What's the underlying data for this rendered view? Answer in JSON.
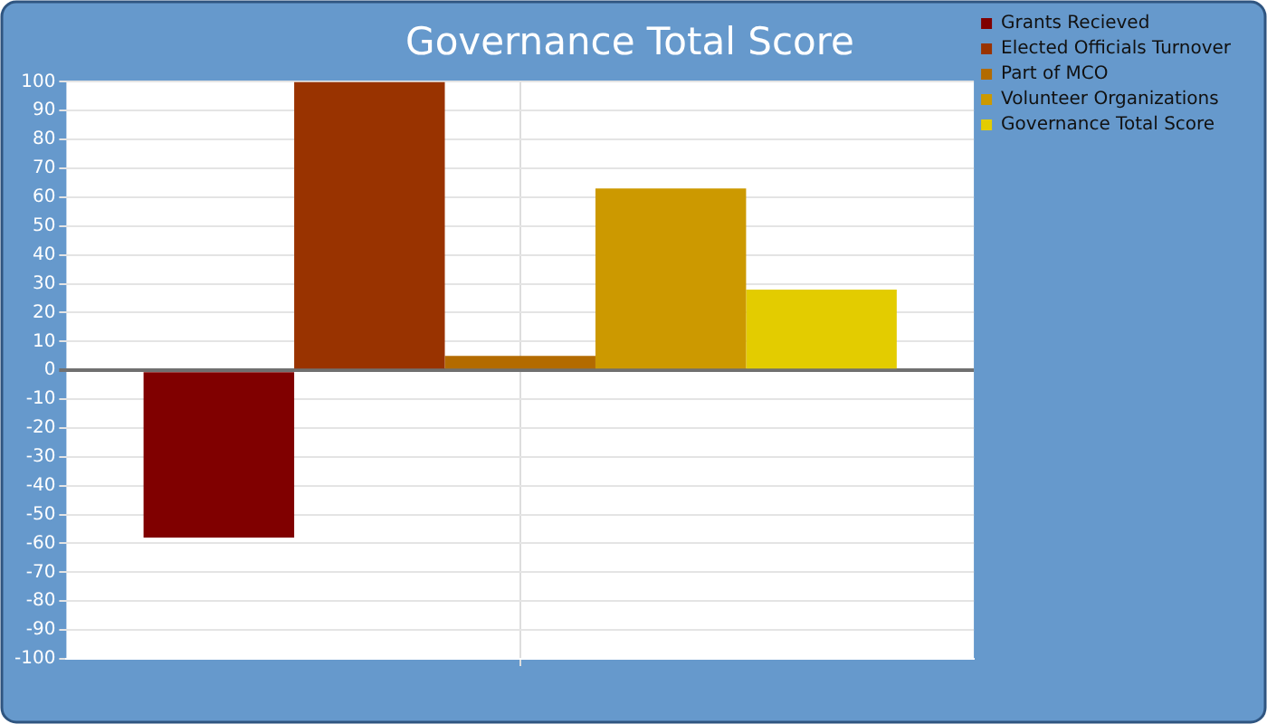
{
  "chart_data": {
    "type": "bar",
    "title": "Governance Total Score",
    "categories": [
      null
    ],
    "series": [
      {
        "name": "Grants Recieved",
        "color": "#800000",
        "values": [
          -58
        ]
      },
      {
        "name": "Elected Officials Turnover",
        "color": "#993300",
        "values": [
          100
        ]
      },
      {
        "name": "Part of MCO",
        "color": "#b36b00",
        "values": [
          5
        ]
      },
      {
        "name": "Volunteer Organizations",
        "color": "#cc9900",
        "values": [
          63
        ]
      },
      {
        "name": "Governance Total Score",
        "color": "#e3cc00",
        "values": [
          28
        ]
      }
    ],
    "ylim": [
      -100,
      100
    ],
    "yticks": [
      -100,
      -90,
      -80,
      -70,
      -60,
      -50,
      -40,
      -30,
      -20,
      -10,
      0,
      10,
      20,
      30,
      40,
      50,
      60,
      70,
      80,
      90,
      100
    ],
    "grid": true,
    "legend": "top right"
  }
}
